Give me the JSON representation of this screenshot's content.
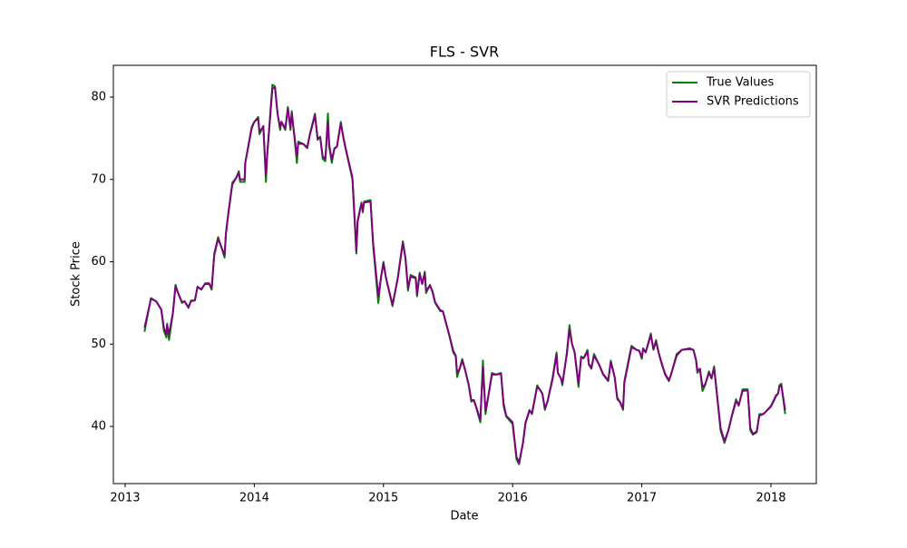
{
  "chart_data": {
    "type": "line",
    "title": "FLS - SVR",
    "x_label": "Date",
    "y_label": "Stock Price",
    "x": [
      2013.15,
      2013.2,
      2013.24,
      2013.28,
      2013.3,
      2013.32,
      2013.325,
      2013.34,
      2013.37,
      2013.39,
      2013.41,
      2013.44,
      2013.46,
      2013.49,
      2013.51,
      2013.54,
      2013.56,
      2013.59,
      2013.62,
      2013.65,
      2013.67,
      2013.69,
      2013.72,
      2013.74,
      2013.77,
      2013.78,
      2013.8,
      2013.83,
      2013.86,
      2013.88,
      2013.89,
      2013.925,
      2013.93,
      2013.98,
      2014.0,
      2014.03,
      2014.04,
      2014.07,
      2014.09,
      2014.1,
      2014.14,
      2014.16,
      2014.18,
      2014.2,
      2014.21,
      2014.24,
      2014.26,
      2014.28,
      2014.29,
      2014.31,
      2014.33,
      2014.34,
      2014.38,
      2014.41,
      2014.43,
      2014.47,
      2014.49,
      2014.51,
      2014.53,
      2014.55,
      2014.57,
      2014.58,
      2014.6,
      2014.62,
      2014.64,
      2014.67,
      2014.69,
      2014.71,
      2014.76,
      2014.78,
      2014.79,
      2014.8,
      2014.82,
      2014.83,
      2014.84,
      2014.85,
      2014.9,
      2014.92,
      2014.96,
      2014.98,
      2015.0,
      2015.02,
      2015.07,
      2015.11,
      2015.15,
      2015.17,
      2015.19,
      2015.21,
      2015.25,
      2015.26,
      2015.28,
      2015.3,
      2015.32,
      2015.33,
      2015.36,
      2015.38,
      2015.4,
      2015.44,
      2015.46,
      2015.51,
      2015.54,
      2015.56,
      2015.57,
      2015.59,
      2015.61,
      2015.63,
      2015.66,
      2015.68,
      2015.7,
      2015.72,
      2015.75,
      2015.77,
      2015.79,
      2015.81,
      2015.84,
      2015.87,
      2015.91,
      2015.93,
      2015.95,
      2016.0,
      2016.03,
      2016.05,
      2016.08,
      2016.1,
      2016.13,
      2016.15,
      2016.19,
      2016.21,
      2016.23,
      2016.25,
      2016.27,
      2016.31,
      2016.34,
      2016.35,
      2016.375,
      2016.385,
      2016.42,
      2016.44,
      2016.46,
      2016.48,
      2016.51,
      2016.53,
      2016.55,
      2016.58,
      2016.59,
      2016.61,
      2016.63,
      2016.67,
      2016.7,
      2016.74,
      2016.76,
      2016.79,
      2016.81,
      2016.83,
      2016.855,
      2016.865,
      2016.92,
      2016.96,
      2016.98,
      2017.0,
      2017.01,
      2017.03,
      2017.07,
      2017.09,
      2017.11,
      2017.13,
      2017.15,
      2017.18,
      2017.21,
      2017.23,
      2017.27,
      2017.31,
      2017.37,
      2017.4,
      2017.42,
      2017.43,
      2017.45,
      2017.47,
      2017.49,
      2017.52,
      2017.54,
      2017.56,
      2017.61,
      2017.64,
      2017.67,
      2017.7,
      2017.73,
      2017.75,
      2017.78,
      2017.82,
      2017.84,
      2017.86,
      2017.89,
      2017.91,
      2017.94,
      2017.96,
      2018.0,
      2018.04,
      2018.055,
      2018.065,
      2018.08,
      2018.11
    ],
    "series": [
      {
        "name": "True Values",
        "color": "#008000",
        "values": [
          51.5,
          55.6,
          55.2,
          54.2,
          51.6,
          50.8,
          52.5,
          50.5,
          53.8,
          57.2,
          56.2,
          55.0,
          55.2,
          54.4,
          55.3,
          55.3,
          57.0,
          56.6,
          57.4,
          57.4,
          56.6,
          61.0,
          63.0,
          62.0,
          60.5,
          63.5,
          66.0,
          69.6,
          70.2,
          71.0,
          69.7,
          69.7,
          72.0,
          76.4,
          77.0,
          77.6,
          75.5,
          76.5,
          69.7,
          73.0,
          81.5,
          81.3,
          78.0,
          76.0,
          77.0,
          76.0,
          78.8,
          76.0,
          78.3,
          75.2,
          72.0,
          74.6,
          74.3,
          73.8,
          75.5,
          78.0,
          74.8,
          75.2,
          72.5,
          72.2,
          78.0,
          74.0,
          72.0,
          73.8,
          74.0,
          77.0,
          75.0,
          73.5,
          70.0,
          64.0,
          61.0,
          65.0,
          66.5,
          67.2,
          66.0,
          67.3,
          67.5,
          62.0,
          55.0,
          58.0,
          60.0,
          58.0,
          54.6,
          58.0,
          62.5,
          60.5,
          56.5,
          58.4,
          58.1,
          55.8,
          58.7,
          57.3,
          58.8,
          56.2,
          57.2,
          56.3,
          55.0,
          54.0,
          54.0,
          51.0,
          49.0,
          48.5,
          46.0,
          47.0,
          48.2,
          47.0,
          45.0,
          43.0,
          43.2,
          42.2,
          40.5,
          48.0,
          41.5,
          43.5,
          46.5,
          46.3,
          46.5,
          42.5,
          41.2,
          40.3,
          36.0,
          35.4,
          38.0,
          40.5,
          42.0,
          41.5,
          45.0,
          44.5,
          44.0,
          42.0,
          43.0,
          46.0,
          49.0,
          46.5,
          45.8,
          45.0,
          49.0,
          52.3,
          50.0,
          49.0,
          44.8,
          48.5,
          48.3,
          49.3,
          47.5,
          47.0,
          48.8,
          47.5,
          46.3,
          45.5,
          48.0,
          46.0,
          43.3,
          43.0,
          42.0,
          45.5,
          49.8,
          49.3,
          49.2,
          48.2,
          49.5,
          49.0,
          51.3,
          49.3,
          50.5,
          49.0,
          47.8,
          46.3,
          45.5,
          46.5,
          48.8,
          49.3,
          49.5,
          49.3,
          48.0,
          46.5,
          47.0,
          44.3,
          45.0,
          46.7,
          45.8,
          47.3,
          39.5,
          38.0,
          39.5,
          41.5,
          43.3,
          42.5,
          44.5,
          44.5,
          39.5,
          39.0,
          39.3,
          41.5,
          41.5,
          41.8,
          42.5,
          43.8,
          44.0,
          45.0,
          45.2,
          41.5
        ]
      },
      {
        "name": "SVR Predictions",
        "color": "#800080",
        "values": [
          52.0,
          55.5,
          55.2,
          54.2,
          52.0,
          51.2,
          52.3,
          51.2,
          53.8,
          57.0,
          56.2,
          55.1,
          55.2,
          54.5,
          55.2,
          55.3,
          56.9,
          56.7,
          57.3,
          57.3,
          56.8,
          60.8,
          62.8,
          62.0,
          60.8,
          63.3,
          66.0,
          69.4,
          70.2,
          70.8,
          70.0,
          70.0,
          72.0,
          76.2,
          77.0,
          77.4,
          75.8,
          76.4,
          70.5,
          73.0,
          81.0,
          81.2,
          78.0,
          76.3,
          77.0,
          76.2,
          78.6,
          76.3,
          78.0,
          75.4,
          72.8,
          74.4,
          74.3,
          73.9,
          75.4,
          77.8,
          75.0,
          75.1,
          72.8,
          72.5,
          77.0,
          74.2,
          72.4,
          73.7,
          74.0,
          76.8,
          75.1,
          73.6,
          70.2,
          64.5,
          61.3,
          64.8,
          66.4,
          67.0,
          66.2,
          67.2,
          67.3,
          62.3,
          55.8,
          58.0,
          59.8,
          58.0,
          54.8,
          57.9,
          62.3,
          60.5,
          56.8,
          58.2,
          58.0,
          56.0,
          58.5,
          57.3,
          58.6,
          56.5,
          57.1,
          56.4,
          55.1,
          54.1,
          54.0,
          51.1,
          49.2,
          48.6,
          46.5,
          47.0,
          48.0,
          47.0,
          45.1,
          43.2,
          43.2,
          42.3,
          40.8,
          47.2,
          41.9,
          43.5,
          46.3,
          46.3,
          46.4,
          42.8,
          41.3,
          40.5,
          36.3,
          35.6,
          38.0,
          40.4,
          41.9,
          41.6,
          44.8,
          44.5,
          44.0,
          42.2,
          43.0,
          45.8,
          48.7,
          46.5,
          45.8,
          45.2,
          48.8,
          51.8,
          50.0,
          49.0,
          45.2,
          48.3,
          48.3,
          49.1,
          47.6,
          47.1,
          48.6,
          47.5,
          46.4,
          45.6,
          47.8,
          46.0,
          43.5,
          43.0,
          42.2,
          45.3,
          49.6,
          49.3,
          49.2,
          48.4,
          49.4,
          49.0,
          51.1,
          49.4,
          50.3,
          49.0,
          47.9,
          46.4,
          45.6,
          46.5,
          48.6,
          49.3,
          49.4,
          49.3,
          48.1,
          46.8,
          47.0,
          44.8,
          45.1,
          46.5,
          45.9,
          47.1,
          39.8,
          38.2,
          39.5,
          41.4,
          43.1,
          42.6,
          44.3,
          44.4,
          39.8,
          39.1,
          39.4,
          41.3,
          41.5,
          41.8,
          42.4,
          43.7,
          44.0,
          44.8,
          45.0,
          42.0
        ]
      }
    ],
    "xlim": [
      2012.909,
      2018.351
    ],
    "xticks": [
      2013,
      2014,
      2015,
      2016,
      2017,
      2018
    ],
    "ylim": [
      33.06,
      83.86
    ],
    "yticks": [
      40,
      50,
      60,
      70,
      80
    ],
    "legend": "upper right",
    "grid": false
  }
}
